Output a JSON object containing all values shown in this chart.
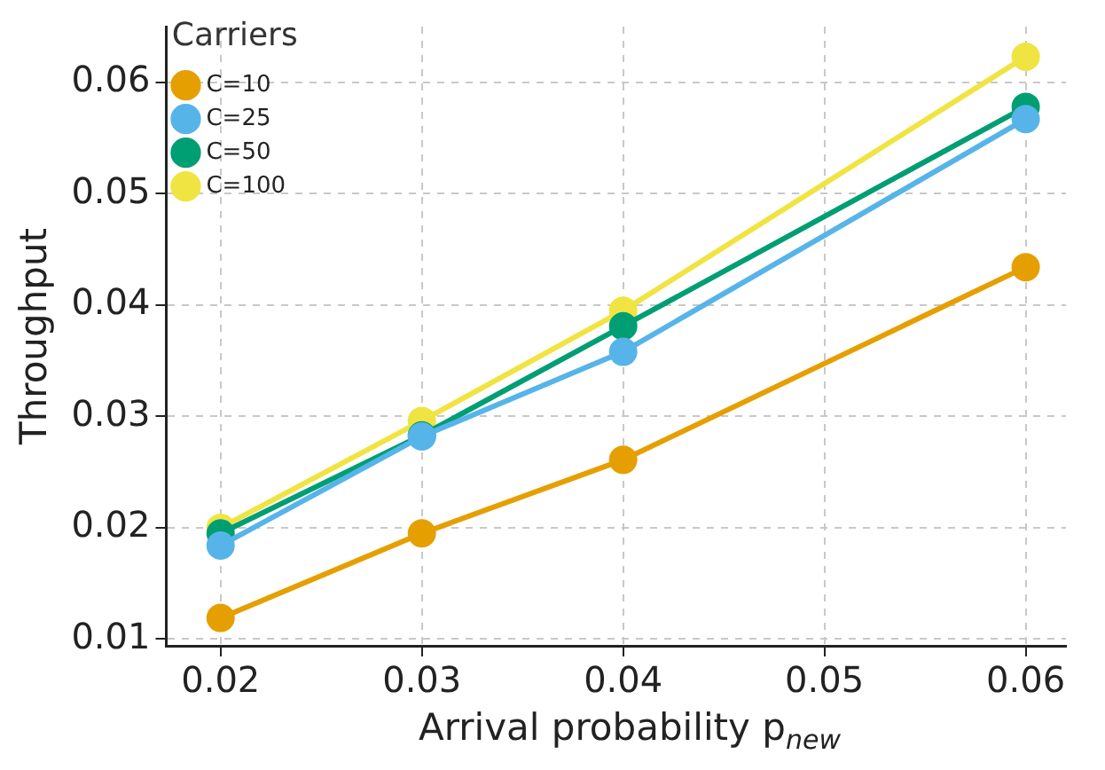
{
  "chart_data": {
    "type": "line",
    "xlabel": "Arrival probability p$_{new}$",
    "ylabel": "Throughput",
    "legend_title": "Carriers",
    "legend": "top left",
    "grid": true,
    "marker": "circle",
    "line_style": "solid",
    "x": [
      0.02,
      0.03,
      0.04,
      0.06
    ],
    "xlim": [
      0.0173,
      0.062
    ],
    "xticks": [
      0.02,
      0.03,
      0.04,
      0.05,
      0.06
    ],
    "ylim": [
      0.0094,
      0.065
    ],
    "yticks": [
      0.01,
      0.02,
      0.03,
      0.04,
      0.05,
      0.06
    ],
    "series": [
      {
        "name": "C=10",
        "color": "#e69f00",
        "values": [
          0.0119,
          0.0195,
          0.0261,
          0.0434
        ]
      },
      {
        "name": "C=25",
        "color": "#56b4e9",
        "values": [
          0.0184,
          0.0282,
          0.0358,
          0.0567
        ]
      },
      {
        "name": "C=50",
        "color": "#009e73",
        "values": [
          0.0195,
          0.0283,
          0.0381,
          0.0578
        ]
      },
      {
        "name": "C=100",
        "color": "#f0e442",
        "values": [
          0.02,
          0.0296,
          0.0395,
          0.0623
        ]
      }
    ]
  }
}
